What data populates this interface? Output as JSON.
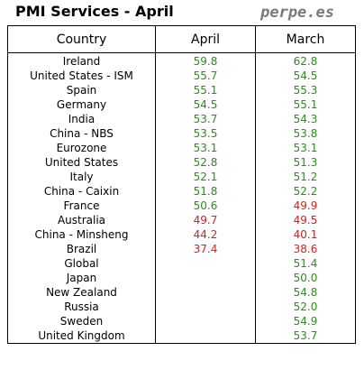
{
  "title": "PMI Services - April",
  "watermark": "perpe.es",
  "colors": {
    "expansion": "#2e8b1e",
    "contraction": "#d42020",
    "border": "#000000",
    "watermark": "#7a7a7a"
  },
  "table": {
    "headers": {
      "country": "Country",
      "april": "April",
      "march": "March"
    },
    "rows": [
      {
        "country": "Ireland",
        "april": "59.8",
        "april_status": "up",
        "march": "62.8",
        "march_status": "up"
      },
      {
        "country": "United States - ISM",
        "april": "55.7",
        "april_status": "up",
        "march": "54.5",
        "march_status": "up"
      },
      {
        "country": "Spain",
        "april": "55.1",
        "april_status": "up",
        "march": "55.3",
        "march_status": "up"
      },
      {
        "country": "Germany",
        "april": "54.5",
        "april_status": "up",
        "march": "55.1",
        "march_status": "up"
      },
      {
        "country": "India",
        "april": "53.7",
        "april_status": "up",
        "march": "54.3",
        "march_status": "up"
      },
      {
        "country": "China - NBS",
        "april": "53.5",
        "april_status": "up",
        "march": "53.8",
        "march_status": "up"
      },
      {
        "country": "Eurozone",
        "april": "53.1",
        "april_status": "up",
        "march": "53.1",
        "march_status": "up"
      },
      {
        "country": "United States",
        "april": "52.8",
        "april_status": "up",
        "march": "51.3",
        "march_status": "up"
      },
      {
        "country": "Italy",
        "april": "52.1",
        "april_status": "up",
        "march": "51.2",
        "march_status": "up"
      },
      {
        "country": "China - Caixin",
        "april": "51.8",
        "april_status": "up",
        "march": "52.2",
        "march_status": "up"
      },
      {
        "country": "France",
        "april": "50.6",
        "april_status": "up",
        "march": "49.9",
        "march_status": "down"
      },
      {
        "country": "Australia",
        "april": "49.7",
        "april_status": "down",
        "march": "49.5",
        "march_status": "down"
      },
      {
        "country": "China - Minsheng",
        "april": "44.2",
        "april_status": "down",
        "march": "40.1",
        "march_status": "down"
      },
      {
        "country": "Brazil",
        "april": "37.4",
        "april_status": "down",
        "march": "38.6",
        "march_status": "down"
      },
      {
        "country": "Global",
        "april": "",
        "april_status": "up",
        "march": "51.4",
        "march_status": "up"
      },
      {
        "country": "Japan",
        "april": "",
        "april_status": "up",
        "march": "50.0",
        "march_status": "up"
      },
      {
        "country": "New Zealand",
        "april": "",
        "april_status": "up",
        "march": "54.8",
        "march_status": "up"
      },
      {
        "country": "Russia",
        "april": "",
        "april_status": "up",
        "march": "52.0",
        "march_status": "up"
      },
      {
        "country": "Sweden",
        "april": "",
        "april_status": "up",
        "march": "54.9",
        "march_status": "up"
      },
      {
        "country": "United Kingdom",
        "april": "",
        "april_status": "up",
        "march": "53.7",
        "march_status": "up"
      }
    ]
  }
}
